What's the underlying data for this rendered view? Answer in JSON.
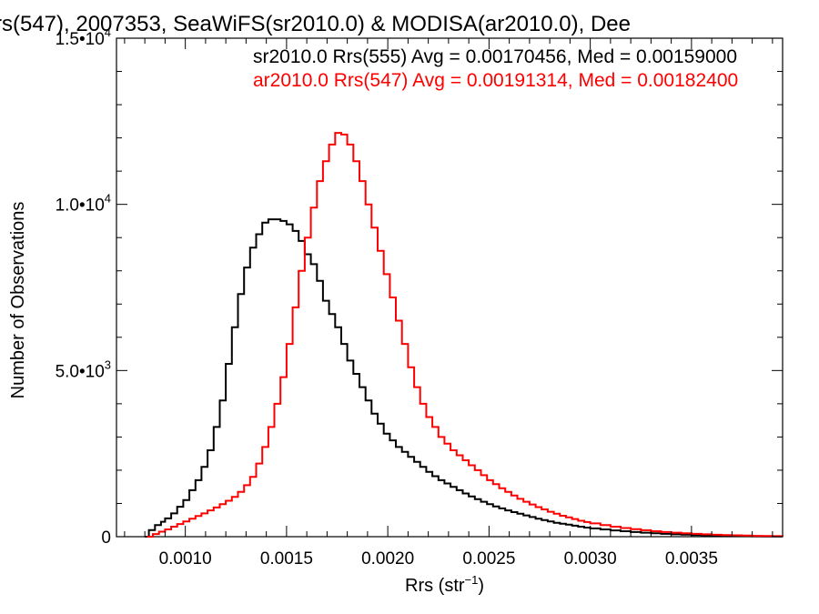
{
  "chart_data": {
    "type": "line",
    "subtype": "step-histogram",
    "title": "rs(547), 2007353, SeaWiFS(sr2010.0) & MODISA(ar2010.0), Dee",
    "xlabel": "Rrs (str",
    "xlabel_sup": "−1",
    "xlabel_close": ")",
    "ylabel": "Number of Observations",
    "xlim": [
      0.00066,
      0.00395
    ],
    "ylim": [
      0,
      15000
    ],
    "x_ticks": [
      {
        "value": 0.001,
        "label": "0.0010"
      },
      {
        "value": 0.0015,
        "label": "0.0015"
      },
      {
        "value": 0.002,
        "label": "0.0020"
      },
      {
        "value": 0.0025,
        "label": "0.0025"
      },
      {
        "value": 0.003,
        "label": "0.0030"
      },
      {
        "value": 0.0035,
        "label": "0.0035"
      }
    ],
    "y_ticks": [
      {
        "value": 0,
        "label": "0",
        "exp": ""
      },
      {
        "value": 5000,
        "label": "5.0•10",
        "exp": "3"
      },
      {
        "value": 10000,
        "label": "1.0•10",
        "exp": "4"
      },
      {
        "value": 15000,
        "label": "1.5•10",
        "exp": "4"
      }
    ],
    "grid": false,
    "legend_position": "top-right",
    "series": [
      {
        "name": "sr2010.0 Rrs(555) Avg = 0.00170456, Med = 0.00159000",
        "color": "#000000",
        "points": [
          [
            0.0008,
            0
          ],
          [
            0.00082,
            200
          ],
          [
            0.00085,
            350
          ],
          [
            0.00088,
            450
          ],
          [
            0.0009,
            550
          ],
          [
            0.00093,
            700
          ],
          [
            0.00096,
            900
          ],
          [
            0.00099,
            1100
          ],
          [
            0.00102,
            1400
          ],
          [
            0.00105,
            1700
          ],
          [
            0.00108,
            2100
          ],
          [
            0.00111,
            2600
          ],
          [
            0.00114,
            3300
          ],
          [
            0.00117,
            4100
          ],
          [
            0.0012,
            5200
          ],
          [
            0.00123,
            6300
          ],
          [
            0.00126,
            7300
          ],
          [
            0.00129,
            8100
          ],
          [
            0.00132,
            8700
          ],
          [
            0.00135,
            9100
          ],
          [
            0.00138,
            9450
          ],
          [
            0.00141,
            9550
          ],
          [
            0.00144,
            9550
          ],
          [
            0.00147,
            9500
          ],
          [
            0.0015,
            9400
          ],
          [
            0.00153,
            9200
          ],
          [
            0.00156,
            8900
          ],
          [
            0.00159,
            8500
          ],
          [
            0.00162,
            8200
          ],
          [
            0.00165,
            7700
          ],
          [
            0.00168,
            7100
          ],
          [
            0.00171,
            6700
          ],
          [
            0.00174,
            6300
          ],
          [
            0.00177,
            5800
          ],
          [
            0.0018,
            5300
          ],
          [
            0.00183,
            4900
          ],
          [
            0.00186,
            4500
          ],
          [
            0.00189,
            4100
          ],
          [
            0.00192,
            3700
          ],
          [
            0.00195,
            3400
          ],
          [
            0.00198,
            3100
          ],
          [
            0.00201,
            2900
          ],
          [
            0.00204,
            2700
          ],
          [
            0.00207,
            2550
          ],
          [
            0.0021,
            2400
          ],
          [
            0.00213,
            2250
          ],
          [
            0.00216,
            2100
          ],
          [
            0.00219,
            1950
          ],
          [
            0.00222,
            1820
          ],
          [
            0.00225,
            1700
          ],
          [
            0.00228,
            1600
          ],
          [
            0.00231,
            1500
          ],
          [
            0.00234,
            1400
          ],
          [
            0.00237,
            1300
          ],
          [
            0.0024,
            1210
          ],
          [
            0.00243,
            1130
          ],
          [
            0.00246,
            1050
          ],
          [
            0.00249,
            980
          ],
          [
            0.00252,
            910
          ],
          [
            0.00255,
            850
          ],
          [
            0.00258,
            790
          ],
          [
            0.00261,
            740
          ],
          [
            0.00264,
            690
          ],
          [
            0.00267,
            640
          ],
          [
            0.0027,
            590
          ],
          [
            0.00273,
            540
          ],
          [
            0.00276,
            500
          ],
          [
            0.00279,
            460
          ],
          [
            0.00282,
            420
          ],
          [
            0.00285,
            390
          ],
          [
            0.00288,
            360
          ],
          [
            0.00291,
            330
          ],
          [
            0.00294,
            300
          ],
          [
            0.00297,
            275
          ],
          [
            0.003,
            250
          ],
          [
            0.00305,
            220
          ],
          [
            0.0031,
            190
          ],
          [
            0.00315,
            165
          ],
          [
            0.0032,
            140
          ],
          [
            0.00325,
            120
          ],
          [
            0.0033,
            100
          ],
          [
            0.00335,
            85
          ],
          [
            0.0034,
            70
          ],
          [
            0.00345,
            60
          ],
          [
            0.0035,
            50
          ],
          [
            0.00355,
            40
          ],
          [
            0.0036,
            32
          ],
          [
            0.00365,
            25
          ],
          [
            0.0037,
            20
          ],
          [
            0.00375,
            15
          ],
          [
            0.0038,
            12
          ],
          [
            0.00385,
            9
          ],
          [
            0.0039,
            6
          ],
          [
            0.00395,
            4
          ]
        ]
      },
      {
        "name": "ar2010.0 Rrs(547) Avg = 0.00191314, Med = 0.00182400",
        "color": "#ff0000",
        "points": [
          [
            0.00081,
            0
          ],
          [
            0.00084,
            80
          ],
          [
            0.00087,
            150
          ],
          [
            0.0009,
            220
          ],
          [
            0.00093,
            300
          ],
          [
            0.00096,
            380
          ],
          [
            0.00099,
            460
          ],
          [
            0.00102,
            540
          ],
          [
            0.00105,
            620
          ],
          [
            0.00108,
            700
          ],
          [
            0.00111,
            790
          ],
          [
            0.00114,
            880
          ],
          [
            0.00117,
            980
          ],
          [
            0.0012,
            1080
          ],
          [
            0.00123,
            1200
          ],
          [
            0.00126,
            1350
          ],
          [
            0.00129,
            1550
          ],
          [
            0.00132,
            1800
          ],
          [
            0.00135,
            2200
          ],
          [
            0.00138,
            2700
          ],
          [
            0.00141,
            3300
          ],
          [
            0.00144,
            4000
          ],
          [
            0.00147,
            4800
          ],
          [
            0.0015,
            5800
          ],
          [
            0.00153,
            6900
          ],
          [
            0.00156,
            8000
          ],
          [
            0.00159,
            9000
          ],
          [
            0.00162,
            9900
          ],
          [
            0.00165,
            10700
          ],
          [
            0.00168,
            11300
          ],
          [
            0.00171,
            11800
          ],
          [
            0.00174,
            12150
          ],
          [
            0.00177,
            12100
          ],
          [
            0.0018,
            11800
          ],
          [
            0.00183,
            11300
          ],
          [
            0.00186,
            10700
          ],
          [
            0.00189,
            10000
          ],
          [
            0.00192,
            9300
          ],
          [
            0.00195,
            8600
          ],
          [
            0.00198,
            7900
          ],
          [
            0.00201,
            7200
          ],
          [
            0.00204,
            6500
          ],
          [
            0.00207,
            5800
          ],
          [
            0.0021,
            5100
          ],
          [
            0.00213,
            4500
          ],
          [
            0.00216,
            4000
          ],
          [
            0.00219,
            3600
          ],
          [
            0.00222,
            3300
          ],
          [
            0.00225,
            3000
          ],
          [
            0.00228,
            2800
          ],
          [
            0.00231,
            2600
          ],
          [
            0.00234,
            2450
          ],
          [
            0.00237,
            2300
          ],
          [
            0.0024,
            2150
          ],
          [
            0.00243,
            2000
          ],
          [
            0.00246,
            1850
          ],
          [
            0.00249,
            1700
          ],
          [
            0.00252,
            1580
          ],
          [
            0.00255,
            1460
          ],
          [
            0.00258,
            1350
          ],
          [
            0.00261,
            1240
          ],
          [
            0.00264,
            1140
          ],
          [
            0.00267,
            1050
          ],
          [
            0.0027,
            970
          ],
          [
            0.00273,
            890
          ],
          [
            0.00276,
            820
          ],
          [
            0.00279,
            750
          ],
          [
            0.00282,
            690
          ],
          [
            0.00285,
            630
          ],
          [
            0.00288,
            580
          ],
          [
            0.00291,
            530
          ],
          [
            0.00294,
            480
          ],
          [
            0.00297,
            440
          ],
          [
            0.003,
            400
          ],
          [
            0.00305,
            350
          ],
          [
            0.0031,
            300
          ],
          [
            0.00315,
            260
          ],
          [
            0.0032,
            225
          ],
          [
            0.00325,
            195
          ],
          [
            0.0033,
            165
          ],
          [
            0.00335,
            140
          ],
          [
            0.0034,
            120
          ],
          [
            0.00345,
            100
          ],
          [
            0.0035,
            85
          ],
          [
            0.00355,
            70
          ],
          [
            0.0036,
            58
          ],
          [
            0.00365,
            48
          ],
          [
            0.0037,
            40
          ],
          [
            0.00375,
            32
          ],
          [
            0.0038,
            26
          ],
          [
            0.00385,
            20
          ],
          [
            0.0039,
            16
          ],
          [
            0.00395,
            12
          ]
        ]
      }
    ]
  }
}
